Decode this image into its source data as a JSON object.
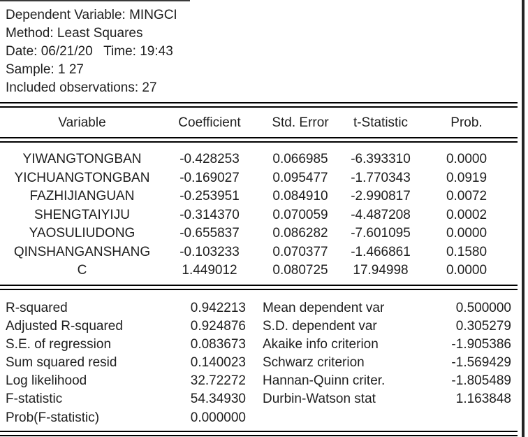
{
  "header": {
    "lines": [
      "Dependent Variable: MINGCI",
      "Method: Least Squares",
      "Date: 06/21/20   Time: 19:43",
      "Sample: 1 27",
      "Included observations: 27"
    ]
  },
  "coef_table": {
    "columns": [
      "Variable",
      "Coefficient",
      "Std. Error",
      "t-Statistic",
      "Prob."
    ],
    "rows": [
      {
        "variable": "YIWANGTONGBAN",
        "coefficient": "-0.428253",
        "std_error": "0.066985",
        "t_statistic": "-6.393310",
        "prob": "0.0000"
      },
      {
        "variable": "YICHUANGTONGBAN",
        "coefficient": "-0.169027",
        "std_error": "0.095477",
        "t_statistic": "-1.770343",
        "prob": "0.0919"
      },
      {
        "variable": "FAZHIJIANGUAN",
        "coefficient": "-0.253951",
        "std_error": "0.084910",
        "t_statistic": "-2.990817",
        "prob": "0.0072"
      },
      {
        "variable": "SHENGTAIYIJU",
        "coefficient": "-0.314370",
        "std_error": "0.070059",
        "t_statistic": "-4.487208",
        "prob": "0.0002"
      },
      {
        "variable": "YAOSULIUDONG",
        "coefficient": "-0.655837",
        "std_error": "0.086282",
        "t_statistic": "-7.601095",
        "prob": "0.0000"
      },
      {
        "variable": "QINSHANGANSHANG",
        "coefficient": "-0.103233",
        "std_error": "0.070377",
        "t_statistic": "-1.466861",
        "prob": "0.1580"
      },
      {
        "variable": "C",
        "coefficient": "1.449012",
        "std_error": "0.080725",
        "t_statistic": "17.94998",
        "prob": "0.0000"
      }
    ]
  },
  "summary": {
    "rows": [
      {
        "left_label": "R-squared",
        "left_value": "0.942213",
        "right_label": "Mean dependent var",
        "right_value": "0.500000"
      },
      {
        "left_label": "Adjusted R-squared",
        "left_value": "0.924876",
        "right_label": "S.D. dependent var",
        "right_value": "0.305279"
      },
      {
        "left_label": "S.E. of regression",
        "left_value": "0.083673",
        "right_label": "Akaike info criterion",
        "right_value": "-1.905386"
      },
      {
        "left_label": "Sum squared resid",
        "left_value": "0.140023",
        "right_label": "Schwarz criterion",
        "right_value": "-1.569429"
      },
      {
        "left_label": "Log likelihood",
        "left_value": "32.72272",
        "right_label": "Hannan-Quinn criter.",
        "right_value": "-1.805489"
      },
      {
        "left_label": "F-statistic",
        "left_value": "54.34930",
        "right_label": "Durbin-Watson stat",
        "right_value": "1.163848"
      },
      {
        "left_label": "Prob(F-statistic)",
        "left_value": "0.000000",
        "right_label": "",
        "right_value": ""
      }
    ]
  },
  "colors": {
    "text": "#1e1e1e",
    "rule": "#000000",
    "background": "#ffffff",
    "window_border": "#242424"
  }
}
